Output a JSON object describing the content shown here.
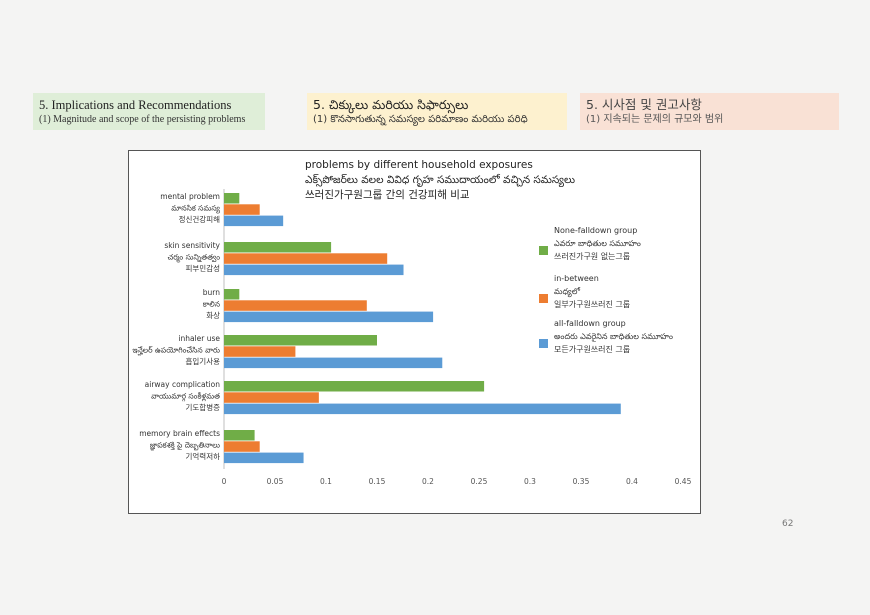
{
  "header": {
    "english": {
      "title": "5. Implications and Recommendations",
      "subtitle": "(1) Magnitude and scope of the persisting problems"
    },
    "telugu": {
      "title": "5. చిక్కులు మరియు సిఫార్సులు",
      "subtitle": "(1) కొనసాగుతున్న సమస్యల పరిమాణం మరియు పరిధి"
    },
    "korean": {
      "title": "5. 시사점 및 권고사항",
      "subtitle": "(1) 지속되는 문제의 규모와 범위"
    }
  },
  "page_number": "62",
  "colors": {
    "none_falldown": "#70ad47",
    "in_between": "#ed7d31",
    "all_falldown": "#5b9bd5"
  },
  "chart_data": {
    "type": "bar",
    "orientation": "horizontal",
    "title": [
      "problems by different household exposures",
      "ఎక్స్‌పోజర్‌లు వలల వివిధ గృహ సముదాయంలో వచ్చిన సమస్యలు",
      "쓰러진가구원그룹 간의 건강피해 비교"
    ],
    "categories": [
      [
        "mental problem",
        "మానసిక సమస్య",
        "정신건강피해"
      ],
      [
        "skin sensitivity",
        "చర్మం సున్నితత్వం",
        "피부민감성"
      ],
      [
        "burn",
        "కాలిన",
        "화상"
      ],
      [
        "inhaler use",
        "ఇన్హేలర్ ఉపయోగించేసిన వారు",
        "흡입기사용"
      ],
      [
        "airway complication",
        "వాయుమార్గ సంకీళ్లమత",
        "기도합병증"
      ],
      [
        "memory brain effects",
        "జ్ఞాపకశక్తి పై దెబ్బతినాలు",
        "기억력저하"
      ]
    ],
    "series": [
      {
        "name": [
          "None-falldown group",
          "ఎవరూ బాధితుల సమూహం",
          "쓰러진가구원 없는그룹"
        ],
        "color": "#70ad47",
        "values": [
          0.015,
          0.105,
          0.015,
          0.15,
          0.255,
          0.03
        ]
      },
      {
        "name": [
          "in-between",
          "మధ్యలో",
          "일부가구원쓰러진 그룹"
        ],
        "color": "#ed7d31",
        "values": [
          0.035,
          0.16,
          0.14,
          0.07,
          0.093,
          0.035
        ]
      },
      {
        "name": [
          "all-falldown group",
          "అందరు ఎవరైనిన బాధితుల సమూహం",
          "모든가구원쓰러진 그룹"
        ],
        "color": "#5b9bd5",
        "values": [
          0.058,
          0.176,
          0.205,
          0.214,
          0.389,
          0.078
        ]
      }
    ],
    "xlim": [
      0,
      0.45
    ],
    "xticks": [
      "0",
      "0.05",
      "0.1",
      "0.15",
      "0.2",
      "0.25",
      "0.3",
      "0.35",
      "0.4",
      "0.45"
    ],
    "grid": false,
    "legend_position": "right"
  }
}
